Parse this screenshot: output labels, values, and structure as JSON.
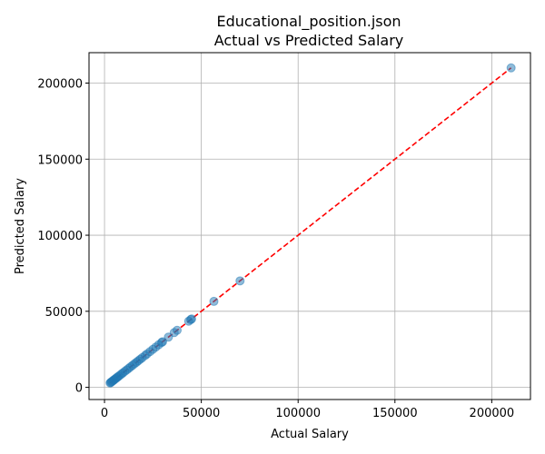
{
  "chart_data": {
    "type": "scatter",
    "title": "Educational_position.json",
    "subtitle": "Actual vs Predicted Salary",
    "xlabel": "Actual Salary",
    "ylabel": "Predicted Salary",
    "xlim": [
      -8000,
      220000
    ],
    "ylim": [
      -8000,
      220000
    ],
    "xticks": [
      0,
      50000,
      100000,
      150000,
      200000
    ],
    "yticks": [
      0,
      50000,
      100000,
      150000,
      200000
    ],
    "grid": true,
    "reference_line": {
      "from": [
        2900,
        2900
      ],
      "to": [
        210000,
        210000
      ],
      "color": "#ff0000",
      "style": "dashed"
    },
    "series": [
      {
        "color": "#1f77b4",
        "x": [
          2900,
          3200,
          3600,
          4000,
          4500,
          5000,
          5500,
          6000,
          6600,
          7200,
          8000,
          8800,
          9500,
          10500,
          11500,
          12500,
          13500,
          14500,
          15500,
          16500,
          17500,
          18500,
          19500,
          21000,
          22000,
          23500,
          25000,
          26500,
          28000,
          29500,
          30000,
          33000,
          36000,
          37500,
          43500,
          44500,
          45000,
          56500,
          70000,
          210000
        ],
        "y": [
          2900,
          3200,
          3600,
          4000,
          4500,
          5000,
          5500,
          6000,
          6600,
          7200,
          8000,
          8800,
          9500,
          10500,
          11500,
          12500,
          13500,
          14500,
          15500,
          16500,
          17500,
          18500,
          19500,
          21000,
          22000,
          23500,
          25000,
          26500,
          28000,
          29500,
          30000,
          33000,
          36000,
          37500,
          43500,
          44500,
          45000,
          56500,
          70000,
          210000
        ]
      }
    ]
  }
}
